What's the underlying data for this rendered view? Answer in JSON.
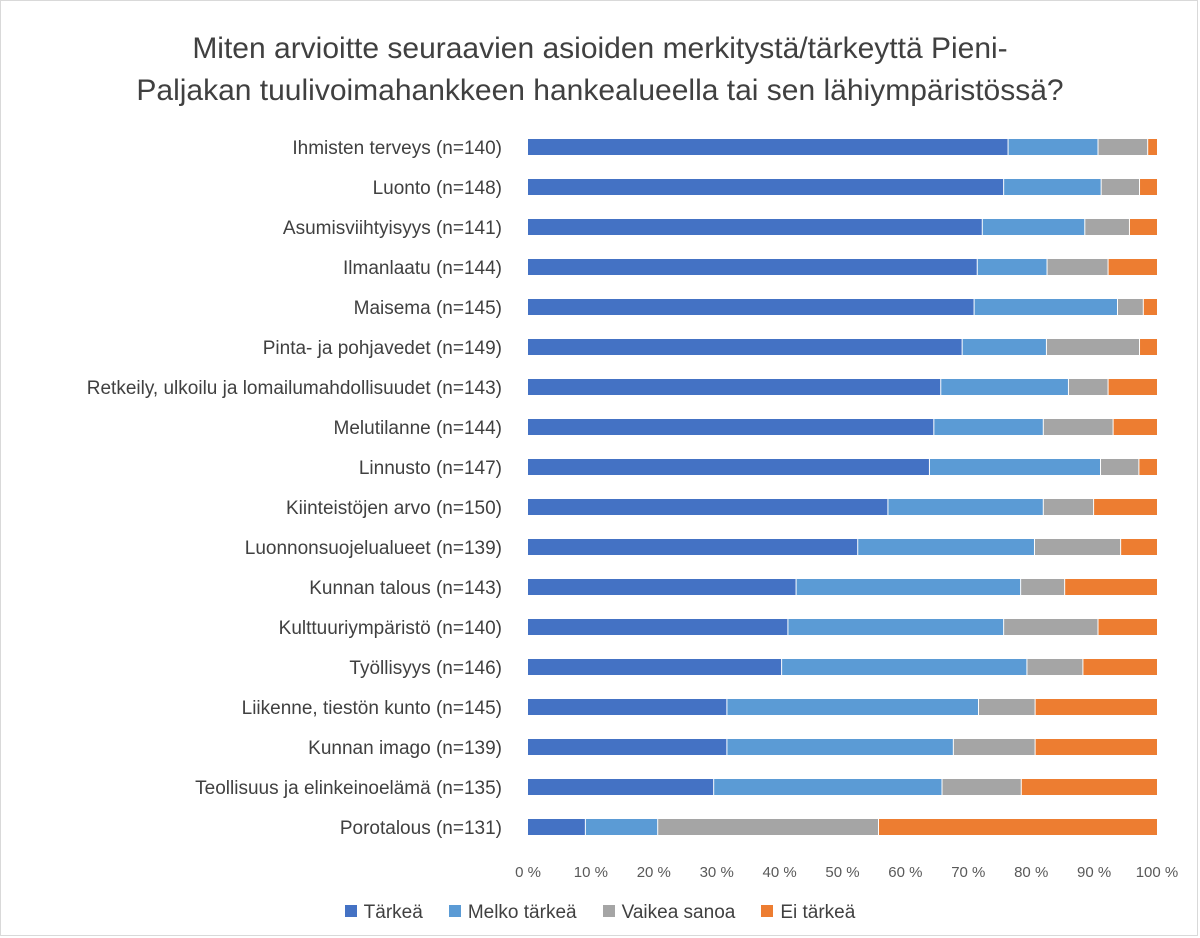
{
  "title_lines": [
    "Miten arvioitte seuraavien asioiden merkitystä/tärkeyttä Pieni-",
    "Paljakan tuulivoimahankkeen hankealueella tai sen lähiympäristössä?"
  ],
  "chart_data": {
    "type": "bar",
    "orientation": "horizontal",
    "stacked": "percent",
    "categories": [
      "Ihmisten terveys (n=140)",
      "Luonto (n=148)",
      "Asumisviihtyisyys (n=141)",
      "Ilmanlaatu (n=144)",
      "Maisema (n=145)",
      "Pinta- ja pohjavedet (n=149)",
      "Retkeily, ulkoilu ja lomailumahdollisuudet (n=143)",
      "Melutilanne (n=144)",
      "Linnusto (n=147)",
      "Kiinteistöjen arvo (n=150)",
      "Luonnonsuojelualueet (n=139)",
      "Kunnan talous (n=143)",
      "Kulttuuriympäristö (n=140)",
      "Työllisyys (n=146)",
      "Liikenne, tiestön kunto (n=145)",
      "Kunnan imago (n=139)",
      "Teollisuus ja elinkeinoelämä (n=135)",
      "Porotalous (n=131)"
    ],
    "series": [
      {
        "name": "Tärkeä",
        "color": "#4472c4",
        "values": [
          76.4,
          75.7,
          72.3,
          71.5,
          71.0,
          69.1,
          65.7,
          64.6,
          63.9,
          57.3,
          52.5,
          42.7,
          41.4,
          40.4,
          31.7,
          31.7,
          29.6,
          9.2
        ]
      },
      {
        "name": "Melko tärkeä",
        "color": "#5b9bd5",
        "values": [
          14.3,
          15.5,
          16.3,
          11.1,
          22.8,
          13.4,
          20.3,
          17.4,
          27.2,
          24.7,
          28.1,
          35.7,
          34.3,
          39.0,
          40.0,
          36.0,
          36.3,
          11.5
        ]
      },
      {
        "name": "Vaikea sanoa",
        "color": "#a5a5a5",
        "values": [
          7.9,
          6.1,
          7.1,
          9.7,
          4.1,
          14.8,
          6.3,
          11.1,
          6.1,
          8.0,
          13.7,
          7.0,
          15.0,
          8.9,
          9.0,
          13.0,
          12.6,
          35.1
        ]
      },
      {
        "name": "Ei tärkeä",
        "color": "#ed7d31",
        "values": [
          1.4,
          2.7,
          4.3,
          7.7,
          2.1,
          2.7,
          7.7,
          6.9,
          2.8,
          10.0,
          5.7,
          14.6,
          9.3,
          11.7,
          19.3,
          19.3,
          21.5,
          44.2
        ]
      }
    ],
    "x_ticks": [
      "0 %",
      "10 %",
      "20 %",
      "30 %",
      "40 %",
      "50 %",
      "60 %",
      "70 %",
      "80 %",
      "90 %",
      "100 %"
    ],
    "xlim": [
      0,
      100
    ],
    "grid": false,
    "legend_position": "bottom"
  }
}
